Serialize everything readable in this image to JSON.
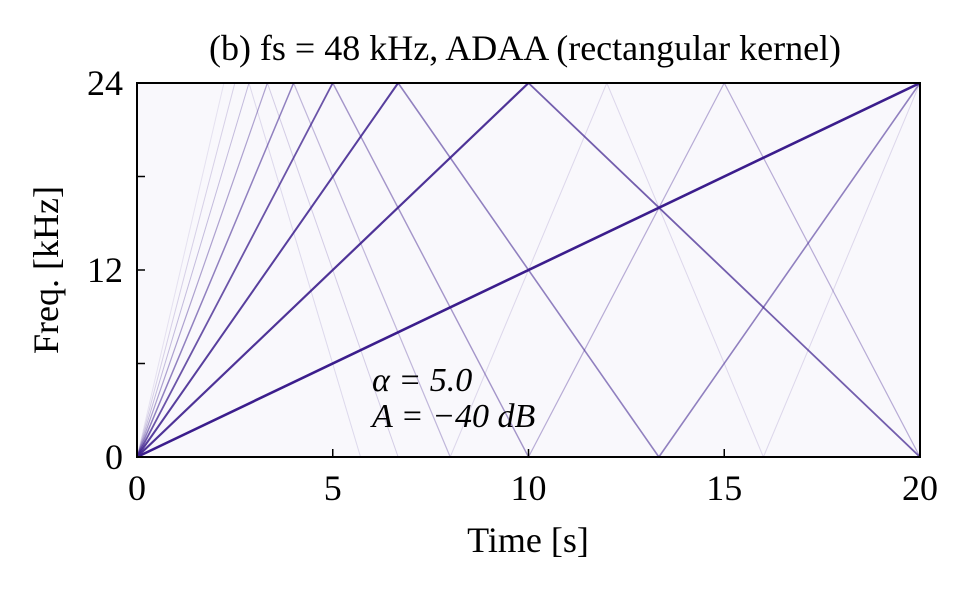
{
  "chart_data": {
    "type": "spectrogram",
    "title": "(b) fs = 48 kHz, ADAA (rectangular kernel)",
    "xlabel": "Time [s]",
    "ylabel": "Freq. [kHz]",
    "annotations": [
      "α = 5.0",
      "A = −40 dB"
    ],
    "xlim": [
      0,
      20
    ],
    "ylim": [
      0,
      24
    ],
    "xticks": [
      0,
      5,
      10,
      15,
      20
    ],
    "yticks": [
      0,
      12,
      24
    ],
    "yminorticks": [
      6,
      18
    ],
    "background": "#f9f8fc",
    "color": "#3b1d8c",
    "series": [
      {
        "x": [
          0,
          20
        ],
        "values": [
          0,
          24
        ],
        "opacity": 1.0,
        "width": 2.6
      },
      {
        "x": [
          0,
          10
        ],
        "values": [
          0,
          24
        ],
        "opacity": 0.9,
        "width": 2.2
      },
      {
        "x": [
          10,
          20
        ],
        "values": [
          24,
          0
        ],
        "opacity": 0.7,
        "width": 1.8
      },
      {
        "x": [
          0,
          6.67
        ],
        "values": [
          0,
          24
        ],
        "opacity": 0.85,
        "width": 2
      },
      {
        "x": [
          6.67,
          13.33
        ],
        "values": [
          24,
          0
        ],
        "opacity": 0.55,
        "width": 1.6
      },
      {
        "x": [
          13.33,
          20
        ],
        "values": [
          0,
          24
        ],
        "opacity": 0.55,
        "width": 1.6
      },
      {
        "x": [
          0,
          5
        ],
        "values": [
          0,
          24
        ],
        "opacity": 0.75,
        "width": 1.8
      },
      {
        "x": [
          5,
          10
        ],
        "values": [
          24,
          0
        ],
        "opacity": 0.45,
        "width": 1.4
      },
      {
        "x": [
          10,
          15
        ],
        "values": [
          0,
          24
        ],
        "opacity": 0.35,
        "width": 1.2
      },
      {
        "x": [
          15,
          20
        ],
        "values": [
          24,
          0
        ],
        "opacity": 0.35,
        "width": 1.2
      },
      {
        "x": [
          0,
          4
        ],
        "values": [
          0,
          24
        ],
        "opacity": 0.55,
        "width": 1.5
      },
      {
        "x": [
          4,
          8
        ],
        "values": [
          24,
          0
        ],
        "opacity": 0.3,
        "width": 1.2
      },
      {
        "x": [
          8,
          12
        ],
        "values": [
          0,
          24
        ],
        "opacity": 0.15,
        "width": 1
      },
      {
        "x": [
          12,
          16
        ],
        "values": [
          24,
          0
        ],
        "opacity": 0.15,
        "width": 1
      },
      {
        "x": [
          16,
          20
        ],
        "values": [
          0,
          24
        ],
        "opacity": 0.15,
        "width": 1
      },
      {
        "x": [
          0,
          3.33
        ],
        "values": [
          0,
          24
        ],
        "opacity": 0.4,
        "width": 1.2
      },
      {
        "x": [
          3.33,
          6.67
        ],
        "values": [
          24,
          0
        ],
        "opacity": 0.2,
        "width": 1
      },
      {
        "x": [
          0,
          2.86
        ],
        "values": [
          0,
          24
        ],
        "opacity": 0.28,
        "width": 1
      },
      {
        "x": [
          2.86,
          5.71
        ],
        "values": [
          24,
          0
        ],
        "opacity": 0.14,
        "width": 1
      },
      {
        "x": [
          0,
          2.5
        ],
        "values": [
          0,
          24
        ],
        "opacity": 0.18,
        "width": 1
      },
      {
        "x": [
          0,
          2.22
        ],
        "values": [
          0,
          24
        ],
        "opacity": 0.1,
        "width": 1
      }
    ]
  }
}
